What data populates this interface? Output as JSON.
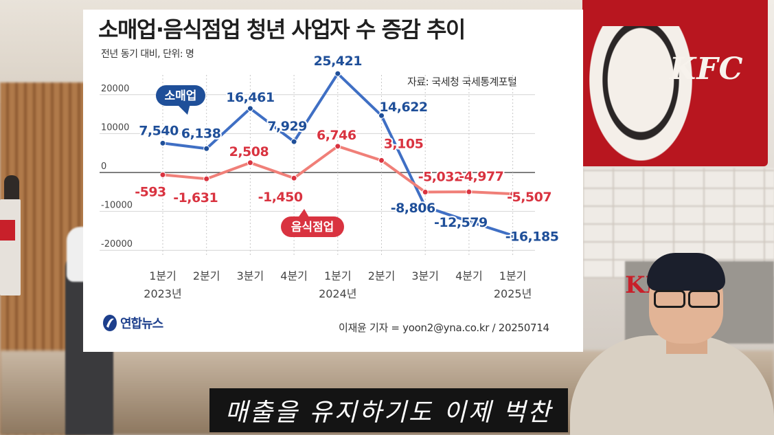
{
  "chart_data": {
    "type": "line",
    "title": "소매업·음식점업 청년 사업자 수 증감 추이",
    "subtitle": "전년 동기 대비, 단위: 명",
    "source": "자료: 국세청 국세통계포털",
    "categories": [
      {
        "quarter": "1분기",
        "year": "2023년"
      },
      {
        "quarter": "2분기",
        "year": ""
      },
      {
        "quarter": "3분기",
        "year": ""
      },
      {
        "quarter": "4분기",
        "year": ""
      },
      {
        "quarter": "1분기",
        "year": "2024년"
      },
      {
        "quarter": "2분기",
        "year": ""
      },
      {
        "quarter": "3분기",
        "year": ""
      },
      {
        "quarter": "4분기",
        "year": ""
      },
      {
        "quarter": "1분기",
        "year": "2025년"
      }
    ],
    "yticks": [
      "20000",
      "10000",
      "0",
      "-10000",
      "-20000"
    ],
    "ylim": [
      -20000,
      20000
    ],
    "grid": true,
    "series": [
      {
        "name": "소매업",
        "color": "#3f6fc4",
        "label_color": "#1f4f99",
        "values": [
          7540,
          6138,
          16461,
          7929,
          25421,
          14622,
          -8806,
          -12579,
          -16185
        ],
        "labels": [
          "7,540",
          "6,138",
          "16,461",
          "7,929",
          "25,421",
          "14,622",
          "-8,806",
          "-12,579",
          "-16,185"
        ]
      },
      {
        "name": "음식점업",
        "color": "#f07f78",
        "label_color": "#d93340",
        "values": [
          -593,
          -1631,
          2508,
          -1450,
          6746,
          3105,
          -5032,
          -4977,
          -5507
        ],
        "labels": [
          "-593",
          "-1,631",
          "2,508",
          "-1,450",
          "6,746",
          "3,105",
          "-5,032",
          "-4,977",
          "-5,507"
        ]
      }
    ]
  },
  "footer": {
    "logo_text": "연합뉴스",
    "credit": "이재윤 기자 = yoon2@yna.co.kr / 20250714"
  },
  "caption": "매출을 유지하기도 이제 벅찬",
  "colors": {
    "retail_badge": "#1f4f99",
    "food_badge": "#d93340"
  }
}
